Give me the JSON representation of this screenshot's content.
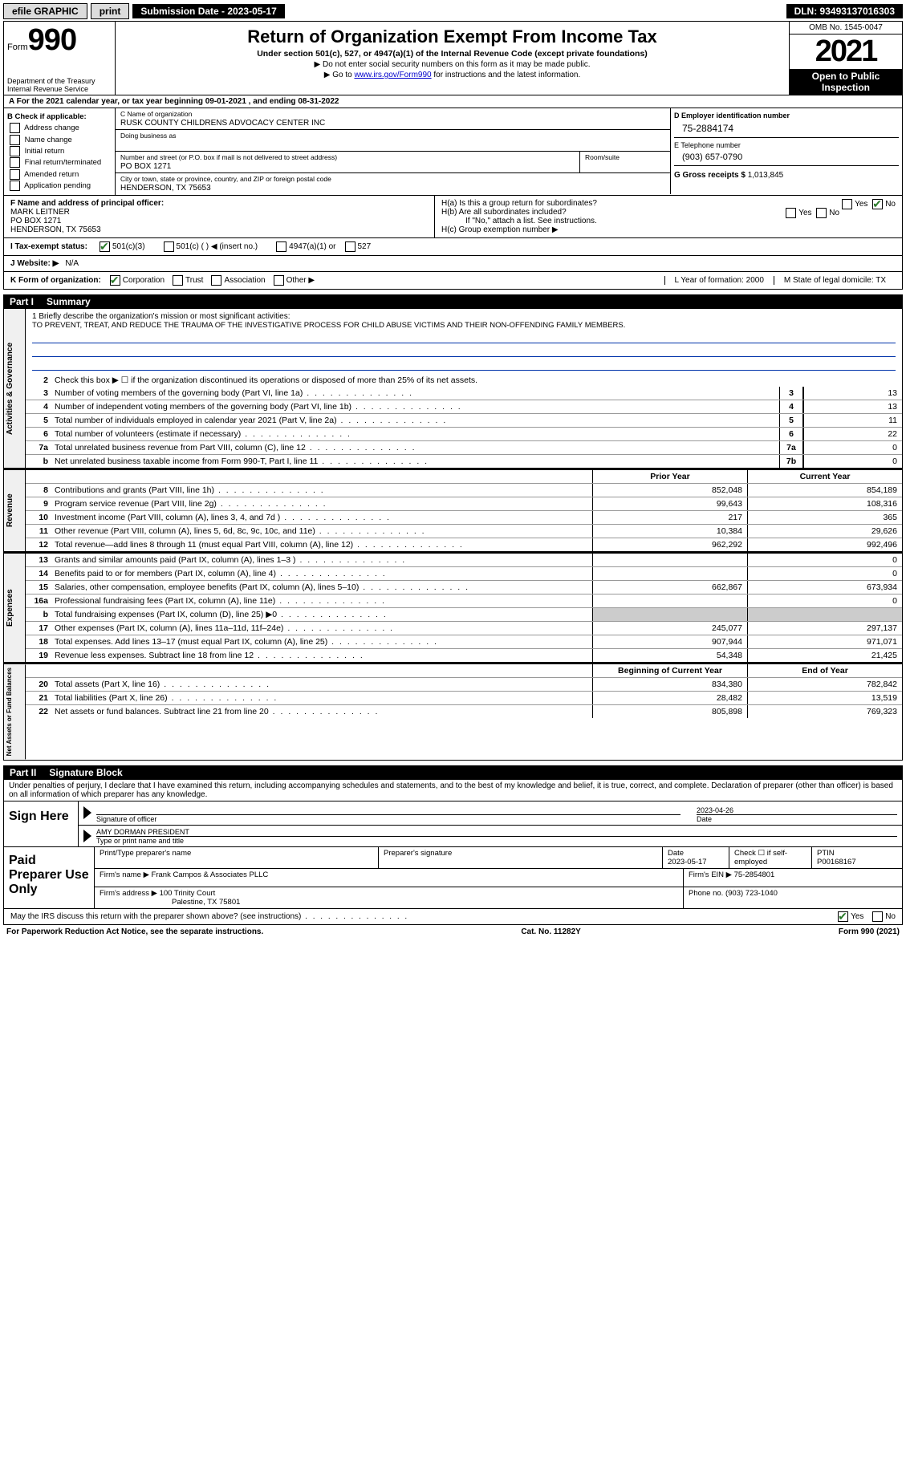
{
  "topbar": {
    "efile": "efile GRAPHIC",
    "print": "print",
    "submission": "Submission Date - 2023-05-17",
    "dln": "DLN: 93493137016303"
  },
  "header": {
    "form_label": "Form",
    "form_num": "990",
    "dept": "Department of the Treasury",
    "irs": "Internal Revenue Service",
    "title": "Return of Organization Exempt From Income Tax",
    "sub1": "Under section 501(c), 527, or 4947(a)(1) of the Internal Revenue Code (except private foundations)",
    "sub2": "▶ Do not enter social security numbers on this form as it may be made public.",
    "sub3_pre": "▶ Go to ",
    "sub3_link": "www.irs.gov/Form990",
    "sub3_post": " for instructions and the latest information.",
    "omb": "OMB No. 1545-0047",
    "year": "2021",
    "open": "Open to Public Inspection"
  },
  "row_a": "A For the 2021 calendar year, or tax year beginning 09-01-2021   , and ending 08-31-2022",
  "col_b": {
    "head": "B Check if applicable:",
    "items": [
      "Address change",
      "Name change",
      "Initial return",
      "Final return/terminated",
      "Amended return",
      "Application pending"
    ]
  },
  "org": {
    "c_label": "C Name of organization",
    "name": "RUSK COUNTY CHILDRENS ADVOCACY CENTER INC",
    "dba_label": "Doing business as",
    "dba": "",
    "addr_label": "Number and street (or P.O. box if mail is not delivered to street address)",
    "room_label": "Room/suite",
    "addr": "PO BOX 1271",
    "city_label": "City or town, state or province, country, and ZIP or foreign postal code",
    "city": "HENDERSON, TX  75653"
  },
  "right_d": {
    "d_label": "D Employer identification number",
    "ein": "75-2884174",
    "e_label": "E Telephone number",
    "phone": "(903) 657-0790",
    "g_label": "G Gross receipts $",
    "gross": "1,013,845"
  },
  "officer": {
    "f_label": "F Name and address of principal officer:",
    "name": "MARK LEITNER",
    "addr1": "PO BOX 1271",
    "addr2": "HENDERSON, TX  75653",
    "ha": "H(a)  Is this a group return for subordinates?",
    "hb": "H(b)  Are all subordinates included?",
    "hb_note": "If \"No,\" attach a list. See instructions.",
    "hc": "H(c)  Group exemption number ▶",
    "yes": "Yes",
    "no": "No"
  },
  "status": {
    "i": "I  Tax-exempt status:",
    "opt1": "501(c)(3)",
    "opt2": "501(c) (  ) ◀ (insert no.)",
    "opt3": "4947(a)(1) or",
    "opt4": "527"
  },
  "website": {
    "j": "J  Website: ▶",
    "val": "N/A"
  },
  "kform": {
    "k": "K Form of organization:",
    "corp": "Corporation",
    "trust": "Trust",
    "assoc": "Association",
    "other": "Other ▶",
    "l": "L Year of formation: 2000",
    "m": "M State of legal domicile: TX"
  },
  "part1": {
    "label": "Part I",
    "title": "Summary"
  },
  "mission": {
    "q": "1   Briefly describe the organization's mission or most significant activities:",
    "text": "TO PREVENT, TREAT, AND REDUCE THE TRAUMA OF THE INVESTIGATIVE PROCESS FOR CHILD ABUSE VICTIMS AND THEIR NON-OFFENDING FAMILY MEMBERS."
  },
  "line2": "Check this box ▶ ☐ if the organization discontinued its operations or disposed of more than 25% of its net assets.",
  "gov_rows": [
    {
      "n": "3",
      "d": "Number of voting members of the governing body (Part VI, line 1a)",
      "box": "3",
      "v": "13"
    },
    {
      "n": "4",
      "d": "Number of independent voting members of the governing body (Part VI, line 1b)",
      "box": "4",
      "v": "13"
    },
    {
      "n": "5",
      "d": "Total number of individuals employed in calendar year 2021 (Part V, line 2a)",
      "box": "5",
      "v": "11"
    },
    {
      "n": "6",
      "d": "Total number of volunteers (estimate if necessary)",
      "box": "6",
      "v": "22"
    },
    {
      "n": "7a",
      "d": "Total unrelated business revenue from Part VIII, column (C), line 12",
      "box": "7a",
      "v": "0"
    },
    {
      "n": "b",
      "d": "Net unrelated business taxable income from Form 990-T, Part I, line 11",
      "box": "7b",
      "v": "0"
    }
  ],
  "col_heads": {
    "prior": "Prior Year",
    "current": "Current Year"
  },
  "rev_rows": [
    {
      "n": "8",
      "d": "Contributions and grants (Part VIII, line 1h)",
      "p": "852,048",
      "c": "854,189"
    },
    {
      "n": "9",
      "d": "Program service revenue (Part VIII, line 2g)",
      "p": "99,643",
      "c": "108,316"
    },
    {
      "n": "10",
      "d": "Investment income (Part VIII, column (A), lines 3, 4, and 7d )",
      "p": "217",
      "c": "365"
    },
    {
      "n": "11",
      "d": "Other revenue (Part VIII, column (A), lines 5, 6d, 8c, 9c, 10c, and 11e)",
      "p": "10,384",
      "c": "29,626"
    },
    {
      "n": "12",
      "d": "Total revenue—add lines 8 through 11 (must equal Part VIII, column (A), line 12)",
      "p": "962,292",
      "c": "992,496"
    }
  ],
  "exp_rows": [
    {
      "n": "13",
      "d": "Grants and similar amounts paid (Part IX, column (A), lines 1–3 )",
      "p": "",
      "c": "0"
    },
    {
      "n": "14",
      "d": "Benefits paid to or for members (Part IX, column (A), line 4)",
      "p": "",
      "c": "0"
    },
    {
      "n": "15",
      "d": "Salaries, other compensation, employee benefits (Part IX, column (A), lines 5–10)",
      "p": "662,867",
      "c": "673,934"
    },
    {
      "n": "16a",
      "d": "Professional fundraising fees (Part IX, column (A), line 11e)",
      "p": "",
      "c": "0"
    },
    {
      "n": "b",
      "d": "Total fundraising expenses (Part IX, column (D), line 25) ▶0",
      "p": "SHADE",
      "c": "SHADE"
    },
    {
      "n": "17",
      "d": "Other expenses (Part IX, column (A), lines 11a–11d, 11f–24e)",
      "p": "245,077",
      "c": "297,137"
    },
    {
      "n": "18",
      "d": "Total expenses. Add lines 13–17 (must equal Part IX, column (A), line 25)",
      "p": "907,944",
      "c": "971,071"
    },
    {
      "n": "19",
      "d": "Revenue less expenses. Subtract line 18 from line 12",
      "p": "54,348",
      "c": "21,425"
    }
  ],
  "na_heads": {
    "begin": "Beginning of Current Year",
    "end": "End of Year"
  },
  "na_rows": [
    {
      "n": "20",
      "d": "Total assets (Part X, line 16)",
      "p": "834,380",
      "c": "782,842"
    },
    {
      "n": "21",
      "d": "Total liabilities (Part X, line 26)",
      "p": "28,482",
      "c": "13,519"
    },
    {
      "n": "22",
      "d": "Net assets or fund balances. Subtract line 21 from line 20",
      "p": "805,898",
      "c": "769,323"
    }
  ],
  "part2": {
    "label": "Part II",
    "title": "Signature Block"
  },
  "sig_decl": "Under penalties of perjury, I declare that I have examined this return, including accompanying schedules and statements, and to the best of my knowledge and belief, it is true, correct, and complete. Declaration of preparer (other than officer) is based on all information of which preparer has any knowledge.",
  "sign": {
    "here": "Sign Here",
    "sig_label": "Signature of officer",
    "date": "2023-04-26",
    "date_label": "Date",
    "name": "AMY DORMAN  PRESIDENT",
    "name_label": "Type or print name and title"
  },
  "prep": {
    "title": "Paid Preparer Use Only",
    "h1": "Print/Type preparer's name",
    "h2": "Preparer's signature",
    "h3": "Date",
    "date": "2023-05-17",
    "h4": "Check ☐ if self-employed",
    "h5": "PTIN",
    "ptin": "P00168167",
    "firm_label": "Firm's name    ▶",
    "firm": "Frank Campos & Associates PLLC",
    "ein_label": "Firm's EIN ▶",
    "ein": "75-2854801",
    "addr_label": "Firm's address ▶",
    "addr1": "100 Trinity Court",
    "addr2": "Palestine, TX  75801",
    "phone_label": "Phone no.",
    "phone": "(903) 723-1040"
  },
  "footer": {
    "q": "May the IRS discuss this return with the preparer shown above? (see instructions)",
    "yes": "Yes",
    "no": "No"
  },
  "bottom": {
    "left": "For Paperwork Reduction Act Notice, see the separate instructions.",
    "mid": "Cat. No. 11282Y",
    "right": "Form 990 (2021)"
  },
  "tabs": {
    "gov": "Activities & Governance",
    "rev": "Revenue",
    "exp": "Expenses",
    "na": "Net Assets or Fund Balances"
  }
}
